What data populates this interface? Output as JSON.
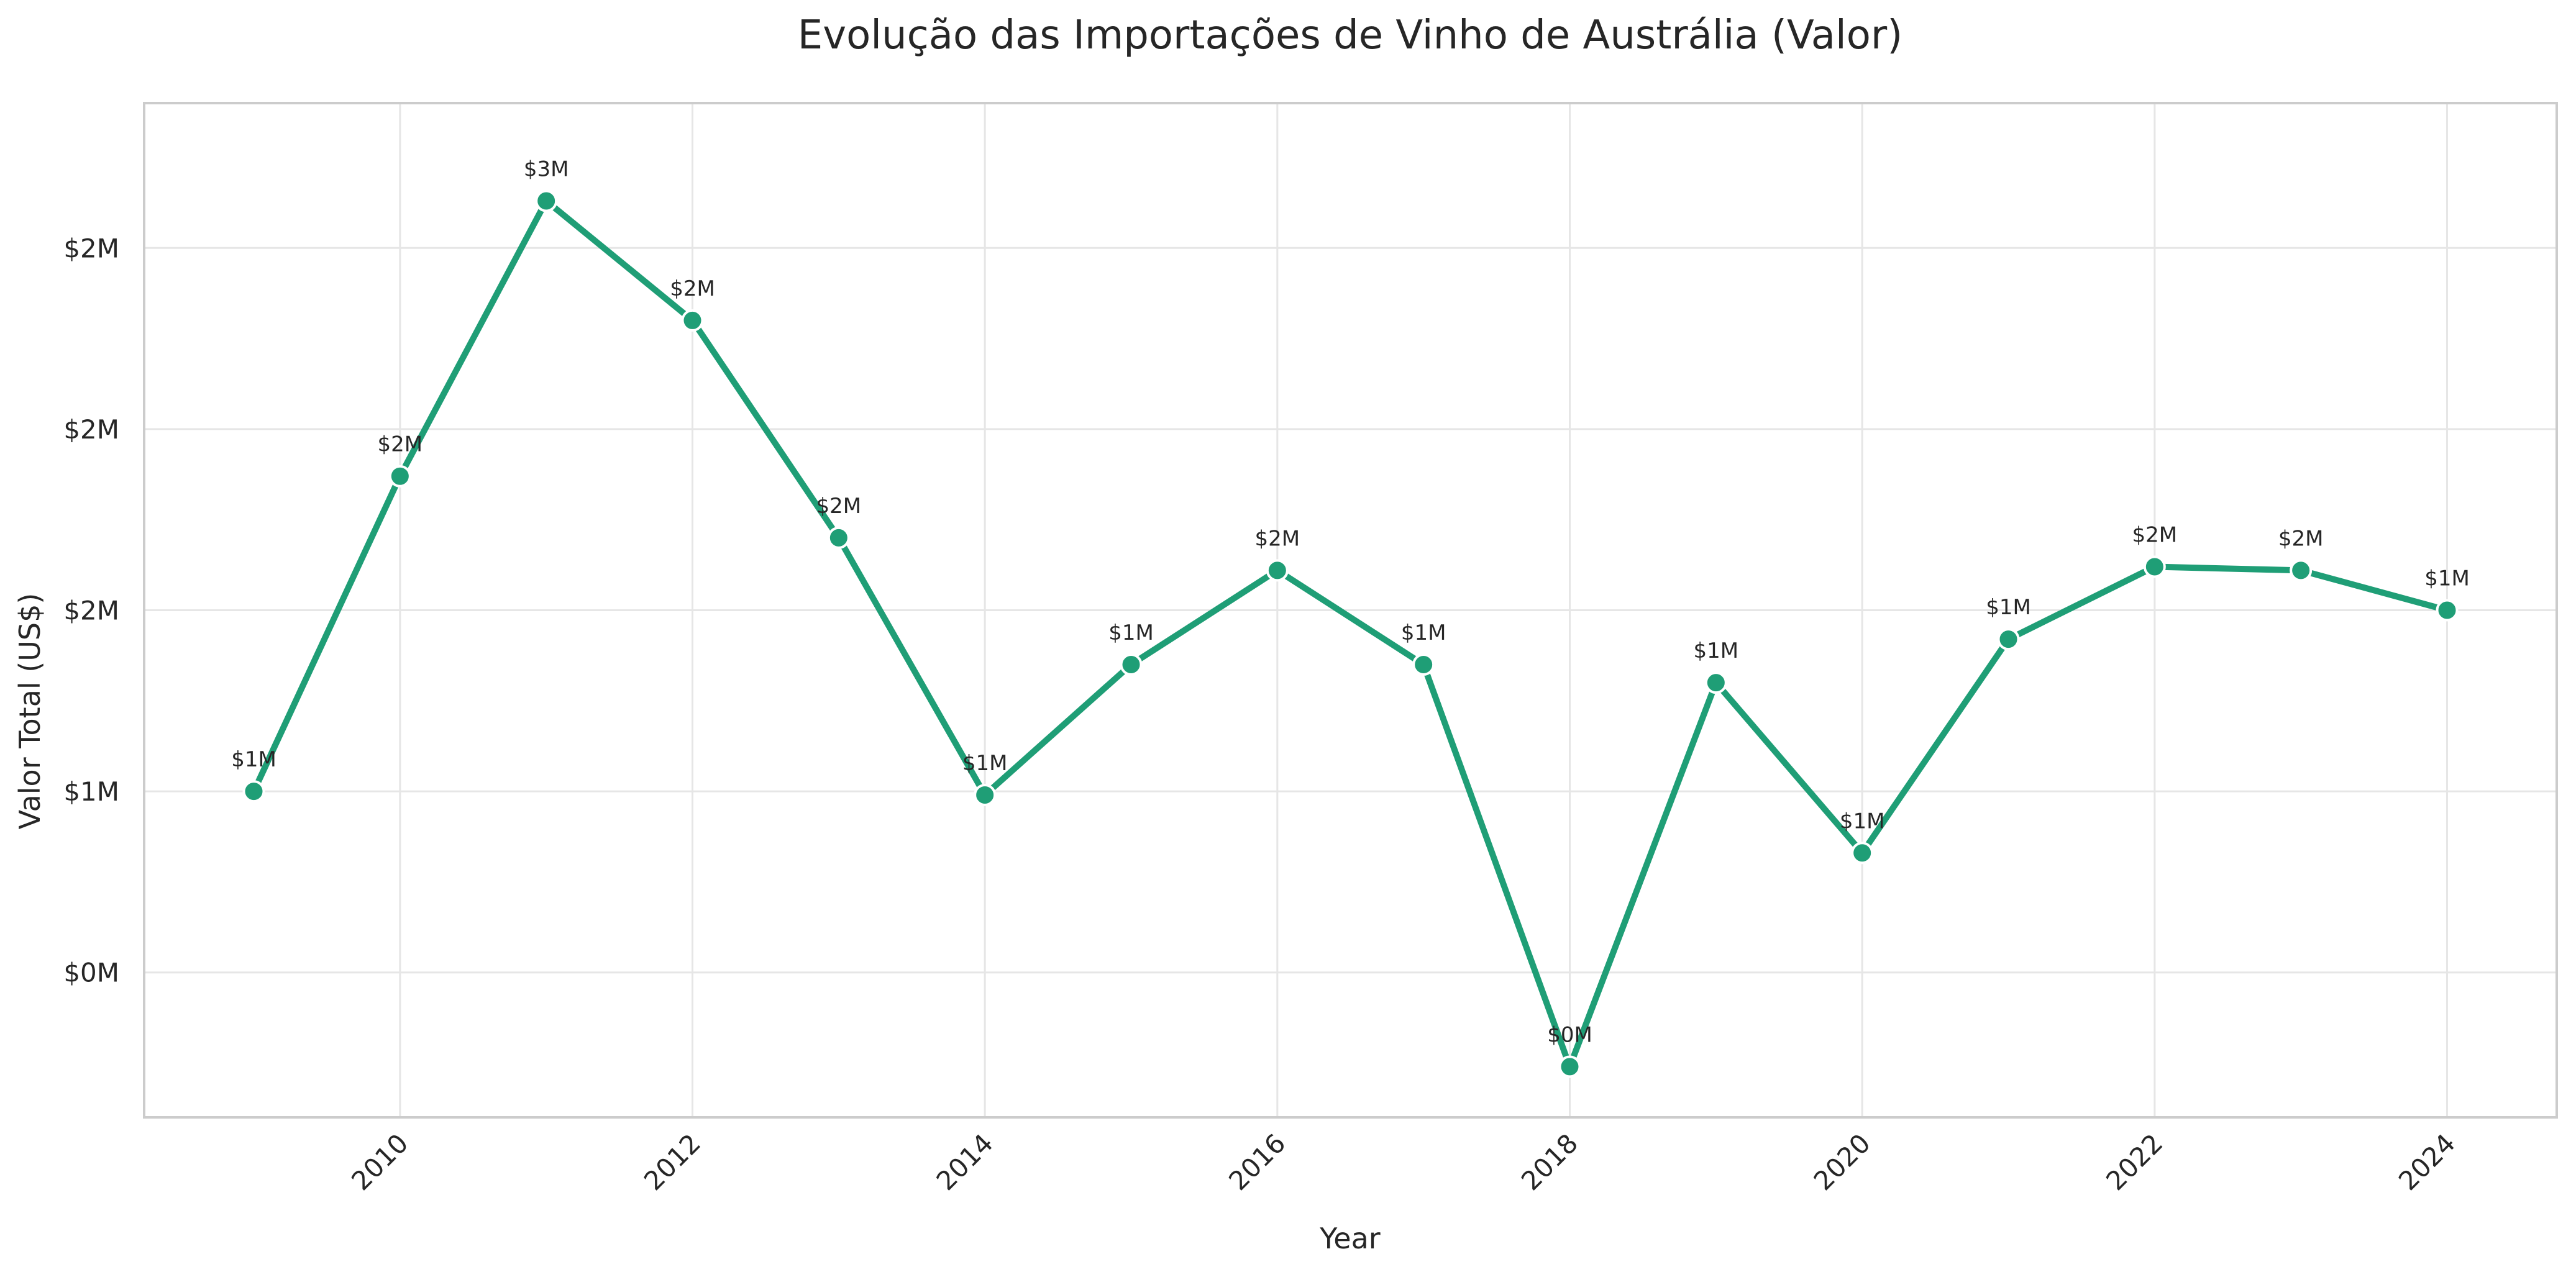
{
  "chart_data": {
    "type": "line",
    "title": "Evolução das Importações de Vinho de Austrália (Valor)",
    "xlabel": "Year",
    "ylabel": "Valor Total (US$)",
    "x": [
      2009,
      2010,
      2011,
      2012,
      2013,
      2014,
      2015,
      2016,
      2017,
      2018,
      2019,
      2020,
      2021,
      2022,
      2023,
      2024
    ],
    "series": [
      {
        "name": "",
        "values": [
          1.0,
          1.87,
          2.63,
          2.3,
          1.7,
          0.99,
          1.35,
          1.61,
          1.35,
          0.24,
          1.3,
          0.83,
          1.42,
          1.62,
          1.61,
          1.5
        ],
        "labels": [
          "$1M",
          "$2M",
          "$3M",
          "$2M",
          "$2M",
          "$1M",
          "$1M",
          "$2M",
          "$1M",
          "$0M",
          "$1M",
          "$1M",
          "$1M",
          "$2M",
          "$2M",
          "$1M"
        ]
      }
    ],
    "xticks": [
      "2010",
      "2012",
      "2014",
      "2016",
      "2018",
      "2020",
      "2022",
      "2024"
    ],
    "xtick_values": [
      2010,
      2012,
      2014,
      2016,
      2018,
      2020,
      2022,
      2024
    ],
    "yticks": [
      "$0M",
      "$1M",
      "$2M",
      "$2M",
      "$2M"
    ],
    "ytick_values": [
      0.5,
      1.0,
      1.5,
      2.0,
      2.5
    ],
    "xlim": [
      2008.25,
      2024.75
    ],
    "ylim": [
      0.1,
      2.9
    ],
    "grid": true,
    "line_color": "#1f9e76"
  }
}
